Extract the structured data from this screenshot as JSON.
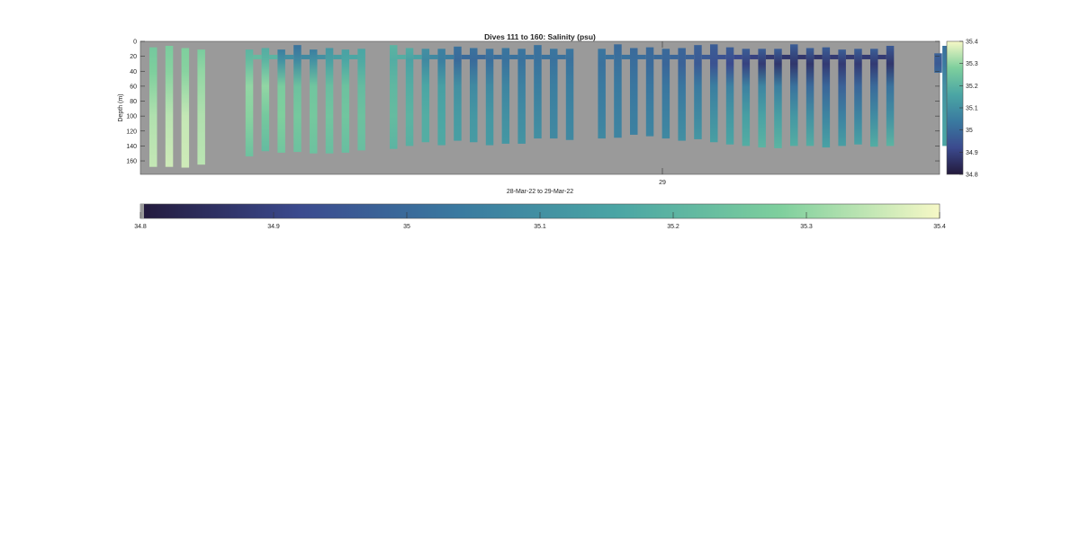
{
  "chart_data": {
    "type": "heatmap",
    "title": "Dives 111 to 160: Salinity (psu)",
    "xlabel": "28-Mar-22 to 29-Mar-22",
    "ylabel": "Depth (m)",
    "xtick_labels": [
      "29"
    ],
    "yticks": [
      0,
      20,
      40,
      60,
      80,
      100,
      120,
      140,
      160
    ],
    "ylim": [
      0,
      178
    ],
    "y_reversed": true,
    "colorbar": {
      "ticks": [
        "34.8",
        "34.9",
        "35",
        "35.1",
        "35.2",
        "35.3",
        "35.4"
      ],
      "range": [
        34.8,
        35.4
      ],
      "colormap": [
        "#231a3c",
        "#3b4a8e",
        "#3a7aa0",
        "#4ba6a4",
        "#7ecf9d",
        "#f6f8c6"
      ]
    },
    "background_color": "#9a9a9a",
    "dives": [
      {
        "col": 0,
        "top": 8,
        "bottom": 168,
        "profile": [
          [
            0,
            35.26
          ],
          [
            40,
            35.28
          ],
          [
            100,
            35.33
          ],
          [
            168,
            35.35
          ]
        ]
      },
      {
        "col": 1,
        "top": 6,
        "bottom": 168,
        "profile": [
          [
            0,
            35.27
          ],
          [
            40,
            35.29
          ],
          [
            100,
            35.34
          ],
          [
            168,
            35.36
          ]
        ]
      },
      {
        "col": 2,
        "top": 9,
        "bottom": 169,
        "profile": [
          [
            0,
            35.28
          ],
          [
            40,
            35.29
          ],
          [
            100,
            35.35
          ],
          [
            169,
            35.36
          ]
        ]
      },
      {
        "col": 3,
        "top": 11,
        "bottom": 165,
        "profile": [
          [
            0,
            35.27
          ],
          [
            40,
            35.3
          ],
          [
            100,
            35.33
          ],
          [
            165,
            35.34
          ]
        ]
      },
      {
        "col": 6,
        "top": 11,
        "bottom": 154,
        "profile": [
          [
            0,
            35.2
          ],
          [
            25,
            35.22
          ],
          [
            60,
            35.3
          ],
          [
            100,
            35.29
          ],
          [
            154,
            35.24
          ]
        ]
      },
      {
        "col": 7,
        "top": 9,
        "bottom": 147,
        "profile": [
          [
            0,
            35.18
          ],
          [
            25,
            35.2
          ],
          [
            60,
            35.3
          ],
          [
            100,
            35.26
          ],
          [
            147,
            35.22
          ]
        ]
      },
      {
        "col": 8,
        "top": 11,
        "bottom": 149,
        "profile": [
          [
            0,
            35.05
          ],
          [
            25,
            35.1
          ],
          [
            60,
            35.27
          ],
          [
            100,
            35.28
          ],
          [
            149,
            35.25
          ]
        ]
      },
      {
        "col": 9,
        "top": 5,
        "bottom": 148,
        "profile": [
          [
            0,
            35.02
          ],
          [
            25,
            35.08
          ],
          [
            60,
            35.24
          ],
          [
            100,
            35.26
          ],
          [
            148,
            35.24
          ]
        ]
      },
      {
        "col": 10,
        "top": 11,
        "bottom": 150,
        "profile": [
          [
            0,
            35.05
          ],
          [
            25,
            35.1
          ],
          [
            60,
            35.25
          ],
          [
            100,
            35.26
          ],
          [
            150,
            35.24
          ]
        ]
      },
      {
        "col": 11,
        "top": 9,
        "bottom": 150,
        "profile": [
          [
            0,
            35.12
          ],
          [
            25,
            35.14
          ],
          [
            60,
            35.23
          ],
          [
            100,
            35.25
          ],
          [
            150,
            35.23
          ]
        ]
      },
      {
        "col": 12,
        "top": 11,
        "bottom": 149,
        "profile": [
          [
            0,
            35.15
          ],
          [
            25,
            35.16
          ],
          [
            60,
            35.24
          ],
          [
            100,
            35.25
          ],
          [
            149,
            35.23
          ]
        ]
      },
      {
        "col": 13,
        "top": 10,
        "bottom": 146,
        "profile": [
          [
            0,
            35.16
          ],
          [
            25,
            35.17
          ],
          [
            60,
            35.22
          ],
          [
            100,
            35.24
          ],
          [
            146,
            35.23
          ]
        ]
      },
      {
        "col": 15,
        "top": 5,
        "bottom": 144,
        "profile": [
          [
            0,
            35.2
          ],
          [
            25,
            35.18
          ],
          [
            60,
            35.21
          ],
          [
            100,
            35.22
          ],
          [
            144,
            35.2
          ]
        ]
      },
      {
        "col": 16,
        "top": 9,
        "bottom": 140,
        "profile": [
          [
            0,
            35.18
          ],
          [
            25,
            35.15
          ],
          [
            60,
            35.18
          ],
          [
            100,
            35.2
          ],
          [
            140,
            35.19
          ]
        ]
      },
      {
        "col": 17,
        "top": 10,
        "bottom": 135,
        "profile": [
          [
            0,
            35.1
          ],
          [
            25,
            35.08
          ],
          [
            60,
            35.16
          ],
          [
            100,
            35.18
          ],
          [
            135,
            35.18
          ]
        ]
      },
      {
        "col": 18,
        "top": 10,
        "bottom": 139,
        "profile": [
          [
            0,
            35.06
          ],
          [
            25,
            35.05
          ],
          [
            60,
            35.14
          ],
          [
            100,
            35.16
          ],
          [
            139,
            35.17
          ]
        ]
      },
      {
        "col": 19,
        "top": 7,
        "bottom": 133,
        "profile": [
          [
            0,
            35.02
          ],
          [
            25,
            35.0
          ],
          [
            60,
            35.1
          ],
          [
            100,
            35.13
          ],
          [
            133,
            35.14
          ]
        ]
      },
      {
        "col": 20,
        "top": 9,
        "bottom": 135,
        "profile": [
          [
            0,
            35.02
          ],
          [
            25,
            35.0
          ],
          [
            60,
            35.08
          ],
          [
            100,
            35.12
          ],
          [
            135,
            35.13
          ]
        ]
      },
      {
        "col": 21,
        "top": 10,
        "bottom": 139,
        "profile": [
          [
            0,
            35.03
          ],
          [
            25,
            35.01
          ],
          [
            60,
            35.08
          ],
          [
            100,
            35.12
          ],
          [
            139,
            35.13
          ]
        ]
      },
      {
        "col": 22,
        "top": 9,
        "bottom": 137,
        "profile": [
          [
            0,
            35.03
          ],
          [
            25,
            35.02
          ],
          [
            60,
            35.07
          ],
          [
            100,
            35.1
          ],
          [
            137,
            35.12
          ]
        ]
      },
      {
        "col": 23,
        "top": 10,
        "bottom": 137,
        "profile": [
          [
            0,
            35.03
          ],
          [
            25,
            35.02
          ],
          [
            60,
            35.06
          ],
          [
            100,
            35.09
          ],
          [
            137,
            35.11
          ]
        ]
      },
      {
        "col": 24,
        "top": 5,
        "bottom": 130,
        "profile": [
          [
            0,
            35.02
          ],
          [
            25,
            35.02
          ],
          [
            60,
            35.05
          ],
          [
            100,
            35.08
          ],
          [
            130,
            35.1
          ]
        ]
      },
      {
        "col": 25,
        "top": 10,
        "bottom": 130,
        "profile": [
          [
            0,
            35.03
          ],
          [
            25,
            35.02
          ],
          [
            60,
            35.05
          ],
          [
            100,
            35.07
          ],
          [
            130,
            35.08
          ]
        ]
      },
      {
        "col": 26,
        "top": 10,
        "bottom": 132,
        "profile": [
          [
            0,
            35.03
          ],
          [
            25,
            35.02
          ],
          [
            60,
            35.05
          ],
          [
            100,
            35.07
          ],
          [
            132,
            35.08
          ]
        ]
      },
      {
        "col": 28,
        "top": 10,
        "bottom": 130,
        "profile": [
          [
            0,
            35.03
          ],
          [
            30,
            35.02
          ],
          [
            60,
            35.04
          ],
          [
            100,
            35.06
          ],
          [
            130,
            35.08
          ]
        ]
      },
      {
        "col": 29,
        "top": 4,
        "bottom": 129,
        "profile": [
          [
            0,
            35.0
          ],
          [
            30,
            35.02
          ],
          [
            60,
            35.04
          ],
          [
            100,
            35.06
          ],
          [
            129,
            35.07
          ]
        ]
      },
      {
        "col": 30,
        "top": 9,
        "bottom": 125,
        "profile": [
          [
            0,
            35.0
          ],
          [
            30,
            35.01
          ],
          [
            60,
            35.03
          ],
          [
            100,
            35.05
          ],
          [
            125,
            35.06
          ]
        ]
      },
      {
        "col": 31,
        "top": 8,
        "bottom": 127,
        "profile": [
          [
            0,
            35.0
          ],
          [
            30,
            35.0
          ],
          [
            60,
            35.03
          ],
          [
            100,
            35.06
          ],
          [
            127,
            35.07
          ]
        ]
      },
      {
        "col": 32,
        "top": 10,
        "bottom": 130,
        "profile": [
          [
            0,
            35.0
          ],
          [
            30,
            34.99
          ],
          [
            60,
            35.03
          ],
          [
            100,
            35.06
          ],
          [
            130,
            35.08
          ]
        ]
      },
      {
        "col": 33,
        "top": 9,
        "bottom": 133,
        "profile": [
          [
            0,
            34.99
          ],
          [
            30,
            34.98
          ],
          [
            60,
            35.03
          ],
          [
            100,
            35.07
          ],
          [
            133,
            35.1
          ]
        ]
      },
      {
        "col": 34,
        "top": 5,
        "bottom": 131,
        "profile": [
          [
            0,
            34.98
          ],
          [
            30,
            34.96
          ],
          [
            60,
            35.04
          ],
          [
            100,
            35.08
          ],
          [
            131,
            35.12
          ]
        ]
      },
      {
        "col": 35,
        "top": 4,
        "bottom": 135,
        "profile": [
          [
            0,
            34.97
          ],
          [
            30,
            34.94
          ],
          [
            60,
            35.05
          ],
          [
            100,
            35.1
          ],
          [
            135,
            35.14
          ]
        ]
      },
      {
        "col": 36,
        "top": 8,
        "bottom": 138,
        "profile": [
          [
            0,
            34.97
          ],
          [
            30,
            34.92
          ],
          [
            60,
            35.06
          ],
          [
            100,
            35.12
          ],
          [
            138,
            35.16
          ]
        ]
      },
      {
        "col": 37,
        "top": 10,
        "bottom": 140,
        "profile": [
          [
            0,
            34.97
          ],
          [
            30,
            34.9
          ],
          [
            60,
            35.06
          ],
          [
            100,
            35.14
          ],
          [
            140,
            35.18
          ]
        ]
      },
      {
        "col": 38,
        "top": 10,
        "bottom": 142,
        "profile": [
          [
            0,
            34.97
          ],
          [
            30,
            34.88
          ],
          [
            60,
            35.07
          ],
          [
            100,
            35.15
          ],
          [
            142,
            35.2
          ]
        ]
      },
      {
        "col": 39,
        "top": 10,
        "bottom": 143,
        "profile": [
          [
            0,
            34.97
          ],
          [
            30,
            34.87
          ],
          [
            60,
            35.05
          ],
          [
            100,
            35.14
          ],
          [
            143,
            35.2
          ]
        ]
      },
      {
        "col": 40,
        "top": 4,
        "bottom": 140,
        "profile": [
          [
            0,
            34.97
          ],
          [
            30,
            34.87
          ],
          [
            60,
            35.02
          ],
          [
            100,
            35.12
          ],
          [
            140,
            35.18
          ]
        ]
      },
      {
        "col": 41,
        "top": 9,
        "bottom": 140,
        "profile": [
          [
            0,
            34.97
          ],
          [
            30,
            34.87
          ],
          [
            60,
            35.0
          ],
          [
            100,
            35.1
          ],
          [
            140,
            35.18
          ]
        ]
      },
      {
        "col": 42,
        "top": 8,
        "bottom": 142,
        "profile": [
          [
            0,
            34.97
          ],
          [
            30,
            34.88
          ],
          [
            60,
            34.99
          ],
          [
            100,
            35.07
          ],
          [
            142,
            35.15
          ]
        ]
      },
      {
        "col": 43,
        "top": 11,
        "bottom": 140,
        "profile": [
          [
            0,
            34.97
          ],
          [
            30,
            34.88
          ],
          [
            60,
            34.98
          ],
          [
            100,
            35.06
          ],
          [
            140,
            35.14
          ]
        ]
      },
      {
        "col": 44,
        "top": 10,
        "bottom": 138,
        "profile": [
          [
            0,
            34.97
          ],
          [
            30,
            34.88
          ],
          [
            60,
            34.99
          ],
          [
            100,
            35.07
          ],
          [
            138,
            35.15
          ]
        ]
      },
      {
        "col": 45,
        "top": 10,
        "bottom": 141,
        "profile": [
          [
            0,
            34.97
          ],
          [
            30,
            34.88
          ],
          [
            60,
            35.0
          ],
          [
            100,
            35.09
          ],
          [
            141,
            35.18
          ]
        ]
      },
      {
        "col": 46,
        "top": 6,
        "bottom": 140,
        "profile": [
          [
            0,
            34.96
          ],
          [
            30,
            34.87
          ],
          [
            60,
            35.02
          ],
          [
            100,
            35.1
          ],
          [
            140,
            35.2
          ]
        ]
      },
      {
        "col": 49,
        "top": 16,
        "bottom": 42,
        "profile": [
          [
            0,
            34.98
          ],
          [
            30,
            34.96
          ],
          [
            42,
            35.0
          ]
        ]
      },
      {
        "col": 49.5,
        "top": 6,
        "bottom": 140,
        "profile": [
          [
            0,
            35.02
          ],
          [
            30,
            35.04
          ],
          [
            60,
            35.1
          ],
          [
            100,
            35.14
          ],
          [
            140,
            35.16
          ]
        ]
      }
    ]
  }
}
